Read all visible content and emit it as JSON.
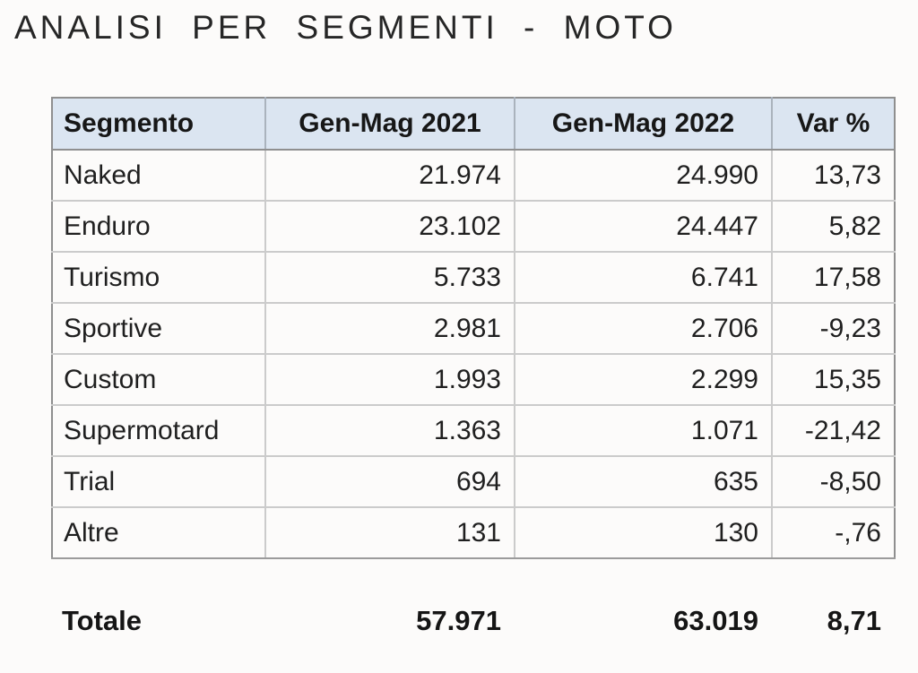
{
  "title": "ANALISI  PER  SEGMENTI  -  MOTO",
  "colors": {
    "header_bg": "#dbe5f1",
    "outer_border": "#8f8f8f",
    "inner_border": "#cbcbcb",
    "text": "#1f1f1f"
  },
  "chart_data": {
    "type": "table",
    "title": "ANALISI  PER  SEGMENTI  -  MOTO",
    "columns": [
      "Segmento",
      "Gen-Mag 2021",
      "Gen-Mag 2022",
      "Var %"
    ],
    "rows": [
      [
        "Naked",
        "21.974",
        "24.990",
        "13,73"
      ],
      [
        "Enduro",
        "23.102",
        "24.447",
        "5,82"
      ],
      [
        "Turismo",
        "5.733",
        "6.741",
        "17,58"
      ],
      [
        "Sportive",
        "2.981",
        "2.706",
        "-9,23"
      ],
      [
        "Custom",
        "1.993",
        "2.299",
        "15,35"
      ],
      [
        "Supermotard",
        "1.363",
        "1.071",
        "-21,42"
      ],
      [
        "Trial",
        "694",
        "635",
        "-8,50"
      ],
      [
        "Altre",
        "131",
        "130",
        "-,76"
      ]
    ],
    "total_row": [
      "Totale",
      "57.971",
      "63.019",
      "8,71"
    ]
  }
}
